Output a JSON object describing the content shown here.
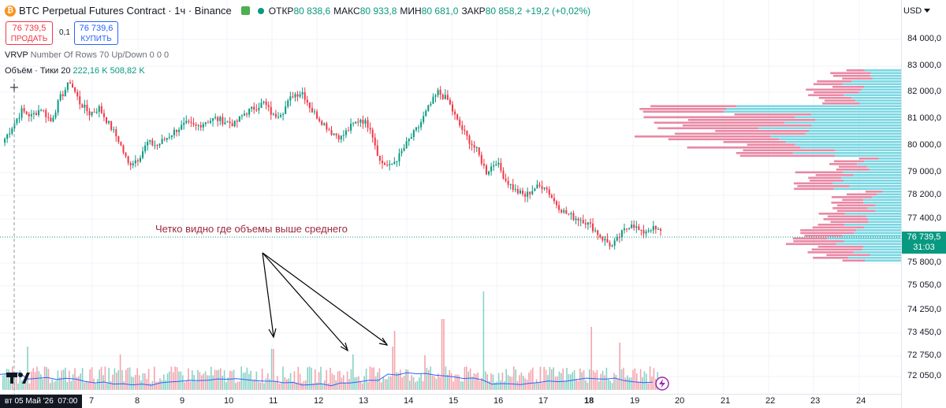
{
  "header": {
    "symbol_title": "BTC Perpetual Futures Contract · 1ч · Binance",
    "open_label": "ОТКР",
    "open_value": "80 838,6",
    "high_label": "МАКС",
    "high_value": "80 933,8",
    "low_label": "МИН",
    "low_value": "80 681,0",
    "close_label": "ЗАКР",
    "close_value": "80 858,2",
    "change": "+19,2 (+0,02%)"
  },
  "trade": {
    "sell_price": "76 739,5",
    "sell_label": "ПРОДАТЬ",
    "spread": "0,1",
    "buy_price": "76 739,6",
    "buy_label": "КУПИТЬ"
  },
  "indicators": {
    "vrvp": "VRVP",
    "vrvp_params": "Number Of Rows 70 Up/Down",
    "vrvp_values": "0 0 0",
    "volume_name": "Объём · Тики 20",
    "volume_a": "222,16 K",
    "volume_b": "508,82 K"
  },
  "annotation": "Четко видно где объемы выше среднего",
  "price_axis": {
    "currency": "USD",
    "ticks": [
      "84 000,0",
      "83 000,0",
      "82 000,0",
      "81 000,0",
      "80 000,0",
      "79 000,0",
      "78 200,0",
      "77 400,0",
      "75 800,0",
      "75 050,0",
      "74 250,0",
      "73 450,0",
      "72 750,0",
      "72 050,0"
    ],
    "current_price": "76 739,5",
    "countdown": "31:03"
  },
  "time_axis": {
    "date_badge": "вт 05 Май '26",
    "time_badge": "07:00",
    "ticks": [
      "7",
      "8",
      "9",
      "10",
      "11",
      "12",
      "13",
      "14",
      "15",
      "16",
      "17",
      "18",
      "19",
      "20",
      "21",
      "22",
      "23",
      "24"
    ]
  },
  "colors": {
    "up": "#089981",
    "down": "#f23645",
    "profile_up": "#4ec9d8",
    "profile_down": "#e0567e",
    "volume_ma": "#2962ff",
    "annotation": "#9c2a3d"
  },
  "chart_data": {
    "type": "candlestick",
    "description_interval": "1h",
    "ylim": [
      75800,
      84000
    ],
    "close_path": [
      80100,
      80700,
      81300,
      81100,
      81400,
      80900,
      81800,
      82400,
      81600,
      81200,
      81400,
      80800,
      80200,
      79300,
      79500,
      80100,
      80000,
      80300,
      80600,
      80800,
      80700,
      80900,
      81000,
      80900,
      80800,
      81200,
      81400,
      81600,
      81100,
      81300,
      81900,
      82000,
      81300,
      80900,
      80500,
      80300,
      80700,
      81000,
      80700,
      79400,
      79200,
      79600,
      80200,
      80700,
      81400,
      82000,
      81700,
      80900,
      80300,
      79800,
      79000,
      79400,
      78700,
      78300,
      78100,
      78400,
      78500,
      77900,
      77500,
      77300,
      77200,
      76900,
      76500,
      76200,
      76700,
      77100,
      76700,
      76900,
      76739
    ]
  }
}
